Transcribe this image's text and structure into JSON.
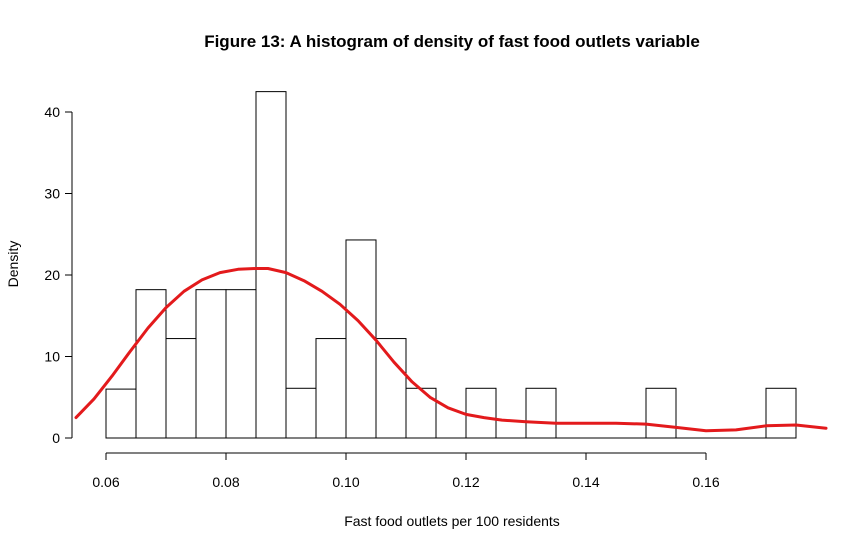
{
  "chart_data": {
    "type": "bar",
    "title": "Figure 13: A histogram of density of fast food outlets variable",
    "xlabel": "Fast food outlets per 100 residents",
    "ylabel": "Density",
    "xlim": [
      0.055,
      0.18
    ],
    "ylim": [
      0,
      45
    ],
    "x_ticks": [
      0.06,
      0.08,
      0.1,
      0.12,
      0.14,
      0.16
    ],
    "x_tick_labels": [
      "0.06",
      "0.08",
      "0.10",
      "0.12",
      "0.14",
      "0.16"
    ],
    "y_ticks": [
      0,
      10,
      20,
      30,
      40
    ],
    "y_tick_labels": [
      "0",
      "10",
      "20",
      "30",
      "40"
    ],
    "bin_width": 0.005,
    "bins": [
      {
        "start": 0.06,
        "end": 0.065,
        "value": 6
      },
      {
        "start": 0.065,
        "end": 0.07,
        "value": 18.2
      },
      {
        "start": 0.07,
        "end": 0.075,
        "value": 12.2
      },
      {
        "start": 0.075,
        "end": 0.08,
        "value": 18.2
      },
      {
        "start": 0.08,
        "end": 0.085,
        "value": 18.2
      },
      {
        "start": 0.085,
        "end": 0.09,
        "value": 42.5
      },
      {
        "start": 0.09,
        "end": 0.095,
        "value": 6.1
      },
      {
        "start": 0.095,
        "end": 0.1,
        "value": 12.2
      },
      {
        "start": 0.1,
        "end": 0.105,
        "value": 24.3
      },
      {
        "start": 0.105,
        "end": 0.11,
        "value": 12.2
      },
      {
        "start": 0.11,
        "end": 0.115,
        "value": 6.1
      },
      {
        "start": 0.115,
        "end": 0.12,
        "value": 0
      },
      {
        "start": 0.12,
        "end": 0.125,
        "value": 6.1
      },
      {
        "start": 0.125,
        "end": 0.13,
        "value": 0
      },
      {
        "start": 0.13,
        "end": 0.135,
        "value": 6.1
      },
      {
        "start": 0.135,
        "end": 0.14,
        "value": 0
      },
      {
        "start": 0.14,
        "end": 0.145,
        "value": 0
      },
      {
        "start": 0.145,
        "end": 0.15,
        "value": 0
      },
      {
        "start": 0.15,
        "end": 0.155,
        "value": 6.1
      },
      {
        "start": 0.155,
        "end": 0.16,
        "value": 0
      },
      {
        "start": 0.16,
        "end": 0.165,
        "value": 0
      },
      {
        "start": 0.165,
        "end": 0.17,
        "value": 0
      },
      {
        "start": 0.17,
        "end": 0.175,
        "value": 6.1
      }
    ],
    "density_curve": {
      "color": "#e31a1c",
      "x": [
        0.055,
        0.058,
        0.061,
        0.064,
        0.067,
        0.07,
        0.073,
        0.076,
        0.079,
        0.082,
        0.085,
        0.087,
        0.09,
        0.093,
        0.096,
        0.099,
        0.102,
        0.105,
        0.108,
        0.111,
        0.114,
        0.117,
        0.12,
        0.123,
        0.126,
        0.13,
        0.135,
        0.14,
        0.145,
        0.15,
        0.155,
        0.16,
        0.165,
        0.17,
        0.175,
        0.18
      ],
      "y": [
        2.5,
        4.8,
        7.6,
        10.6,
        13.5,
        16.0,
        18.0,
        19.4,
        20.3,
        20.7,
        20.8,
        20.8,
        20.3,
        19.3,
        18.0,
        16.4,
        14.4,
        12.0,
        9.3,
        6.9,
        5.0,
        3.7,
        2.9,
        2.5,
        2.2,
        2.0,
        1.8,
        1.8,
        1.8,
        1.7,
        1.3,
        0.9,
        1.0,
        1.5,
        1.6,
        1.2
      ]
    },
    "grid": false,
    "legend": "none"
  }
}
